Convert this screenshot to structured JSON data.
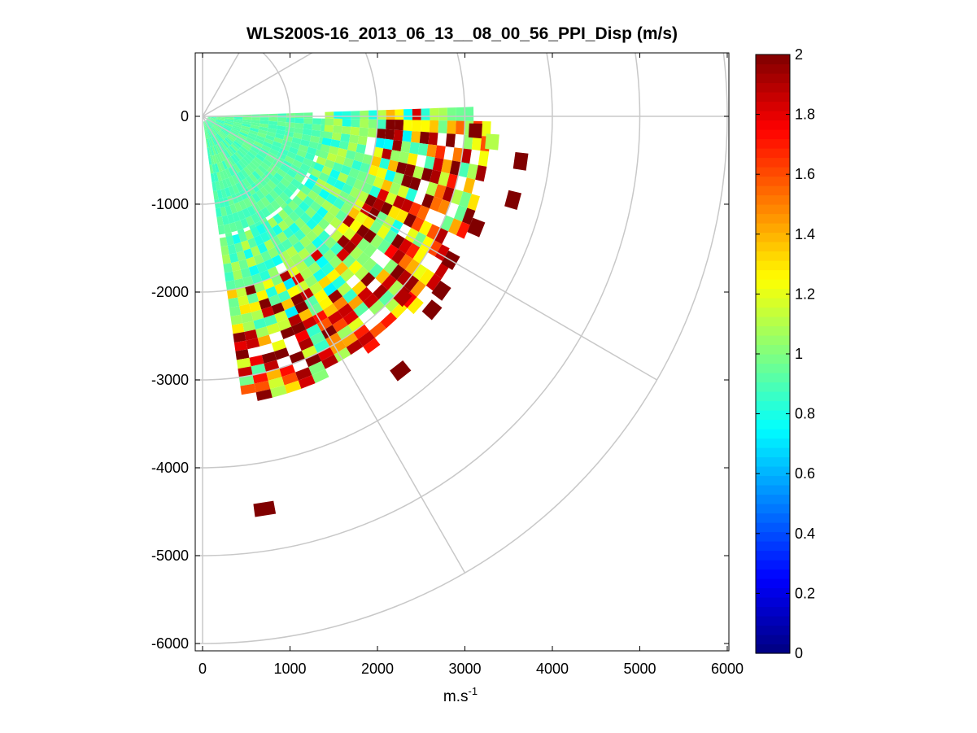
{
  "chart_data": {
    "type": "heatmap",
    "subtype": "polar-ppi-sector",
    "title": "WLS200S-16_2013_06_13__08_00_56_PPI_Disp (m/s)",
    "xlabel_base": "m.s",
    "xlabel_sup": "-1",
    "ylabel": "",
    "xlim": [
      -40,
      6000
    ],
    "ylim": [
      -6100,
      650
    ],
    "x_ticks": [
      0,
      1000,
      2000,
      3000,
      4000,
      5000,
      6000
    ],
    "x_tick_labels": [
      "0",
      "1000",
      "2000",
      "3000",
      "4000",
      "5000",
      "6000"
    ],
    "y_ticks": [
      0,
      -1000,
      -2000,
      -3000,
      -4000,
      -5000,
      -6000
    ],
    "y_tick_labels": [
      "0",
      "-1000",
      "-2000",
      "-3000",
      "-4000",
      "-5000",
      "-6000"
    ],
    "grid": {
      "polar_rings": [
        1000,
        2000,
        3000,
        4000,
        5000,
        6000
      ],
      "spokes_deg": [
        0,
        -30,
        -60,
        30,
        60,
        90,
        -90
      ]
    },
    "colorbar": {
      "colormap": "jet",
      "clim": [
        0,
        2
      ],
      "ticks": [
        0,
        0.2,
        0.4,
        0.6,
        0.8,
        1,
        1.2,
        1.4,
        1.6,
        1.8,
        2
      ],
      "tick_labels": [
        "0",
        "0.2",
        "0.4",
        "0.6",
        "0.8",
        "1",
        "1.2",
        "1.4",
        "1.6",
        "1.8",
        "2"
      ]
    },
    "sector": {
      "azimuth_range_deg": [
        2,
        -82
      ],
      "range_gate_m": 100,
      "beam_width_deg": 3,
      "bands": [
        {
          "r": [
            0,
            1400
          ],
          "v": 0.92,
          "jitter": 0.06
        },
        {
          "r": [
            1400,
            2000
          ],
          "v": 0.95,
          "jitter": 0.18
        },
        {
          "r": [
            2000,
            2600
          ],
          "v": 1.05,
          "jitter": 0.35
        },
        {
          "r": [
            2600,
            3300
          ],
          "v": 1.4,
          "jitter": 0.55
        }
      ]
    },
    "isolated_cells": [
      {
        "az": -3,
        "r": 3050,
        "v": 2.0
      },
      {
        "az": -5,
        "r": 3250,
        "v": 1.1
      },
      {
        "az": -8,
        "r": 3600,
        "v": 2.0
      },
      {
        "az": -15,
        "r": 3600,
        "v": 2.0
      },
      {
        "az": -22,
        "r": 3300,
        "v": 2.0
      },
      {
        "az": -30,
        "r": 3200,
        "v": 2.0
      },
      {
        "az": -36,
        "r": 3300,
        "v": 2.0
      },
      {
        "az": -40,
        "r": 3350,
        "v": 2.0
      },
      {
        "az": -42,
        "r": 3000,
        "v": 1.9
      },
      {
        "az": -52,
        "r": 3600,
        "v": 2.0
      },
      {
        "az": -81,
        "r": 4450,
        "v": 2.0
      }
    ]
  }
}
